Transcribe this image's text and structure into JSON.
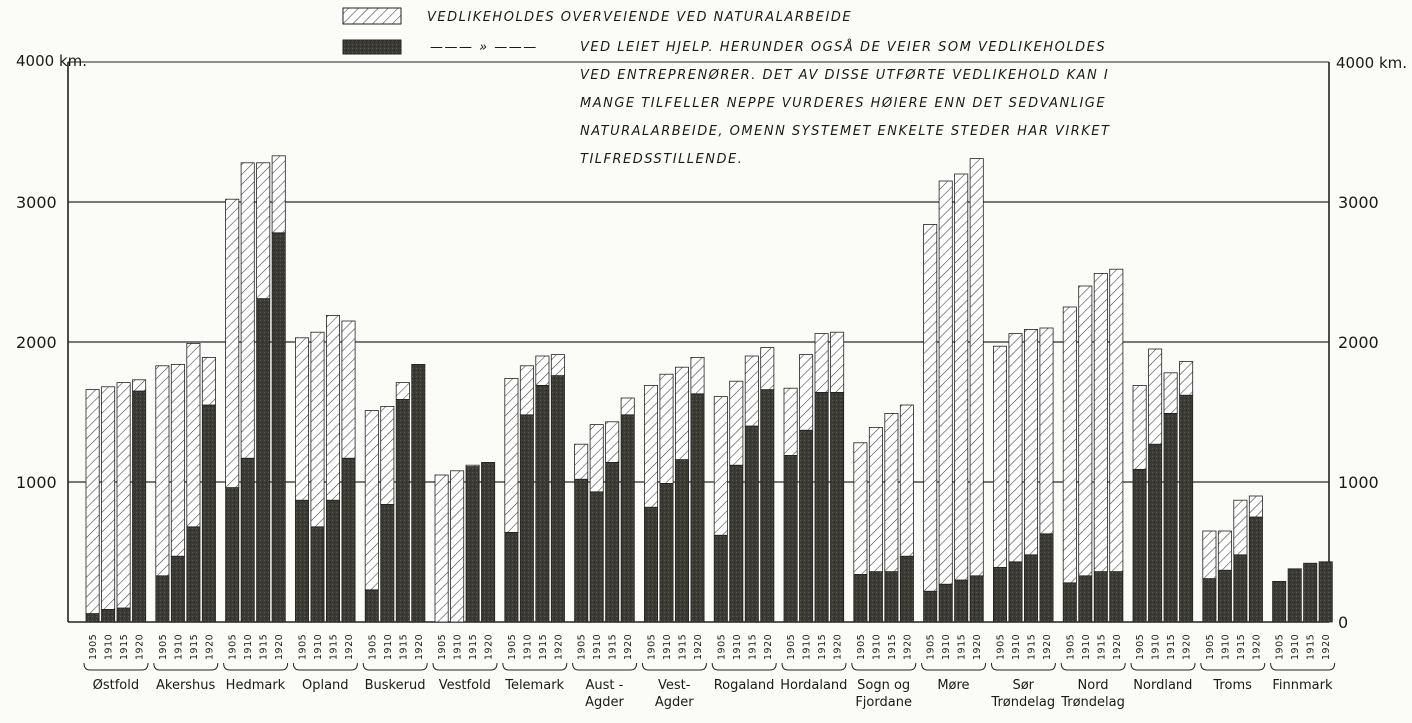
{
  "legend": {
    "natural_line1": "VEDLIKEHOLDES OVERVEIENDE VED NATURALARBEIDE",
    "hired_marker": "——— » ———",
    "hired_line1": "VED LEIET HJELP. HERUNDER OGSÅ DE VEIER SOM VEDLIKEHOLDES",
    "hired_line2": "VED ENTREPRENØRER. DET AV DISSE UTFØRTE VEDLIKEHOLD KAN I",
    "hired_line3": "MANGE TILFELLER NEPPE VURDERES HØIERE ENN DET SEDVANLIGE",
    "hired_line4": "NATURALARBEIDE, OMENN SYSTEMET ENKELTE STEDER HAR VIRKET",
    "hired_line5": "TILFREDSSTILLENDE."
  },
  "axis": {
    "left_top_label": "4000 km.",
    "right_top_label": "4000 km.",
    "left_ticks": [
      "3000",
      "2000",
      "1000"
    ],
    "right_ticks": [
      "3000",
      "2000",
      "1000",
      "0"
    ]
  },
  "colors": {
    "hatch_light": "#ffffff",
    "hatch_line": "#3a3a3a",
    "dark_fill": "#3d3b36",
    "grid": "#2a2a2a"
  },
  "chart_data": {
    "type": "bar",
    "stacked": true,
    "unit": "km",
    "ylim": [
      0,
      4000
    ],
    "grid": true,
    "legend_position": "top",
    "years": [
      "1905",
      "1910",
      "1915",
      "1920"
    ],
    "categories": [
      [
        "Østfold"
      ],
      [
        "Akershus"
      ],
      [
        "Hedmark"
      ],
      [
        "Opland"
      ],
      [
        "Buskerud"
      ],
      [
        "Vestfold"
      ],
      [
        "Telemark"
      ],
      [
        "Aust -",
        "Agder"
      ],
      [
        "Vest-",
        "Agder"
      ],
      [
        "Rogaland"
      ],
      [
        "Hordaland"
      ],
      [
        "Sogn og",
        "Fjordane"
      ],
      [
        "Møre"
      ],
      [
        "Sør",
        "Trøndelag"
      ],
      [
        "Nord",
        "Trøndelag"
      ],
      [
        "Nordland"
      ],
      [
        "Troms"
      ],
      [
        "Finnmark"
      ]
    ],
    "series": [
      {
        "name": "VEDLIKEHOLDES OVERVEIENDE VED NATURALARBEIDE",
        "values": [
          [
            1600,
            1590,
            1610,
            80
          ],
          [
            1500,
            1370,
            1310,
            340
          ],
          [
            2060,
            2110,
            970,
            550
          ],
          [
            1160,
            1390,
            1320,
            980
          ],
          [
            1280,
            700,
            120,
            0
          ],
          [
            1050,
            1080,
            10,
            0
          ],
          [
            1100,
            350,
            210,
            150
          ],
          [
            250,
            480,
            290,
            120
          ],
          [
            870,
            780,
            660,
            260
          ],
          [
            990,
            600,
            500,
            300
          ],
          [
            480,
            540,
            420,
            430
          ],
          [
            940,
            1030,
            1130,
            1080
          ],
          [
            2620,
            2880,
            2900,
            2980
          ],
          [
            1580,
            1630,
            1610,
            1470
          ],
          [
            1970,
            2070,
            2130,
            2160
          ],
          [
            600,
            680,
            290,
            240
          ],
          [
            340,
            280,
            390,
            150
          ],
          [
            0,
            0,
            0,
            0
          ]
        ]
      },
      {
        "name": "——— » ——— VED LEIET HJELP",
        "values": [
          [
            60,
            90,
            100,
            1650
          ],
          [
            330,
            470,
            680,
            1550
          ],
          [
            960,
            1170,
            2310,
            2780
          ],
          [
            870,
            680,
            870,
            1170
          ],
          [
            230,
            840,
            1590,
            1840
          ],
          [
            0,
            0,
            1110,
            1140
          ],
          [
            640,
            1480,
            1690,
            1760
          ],
          [
            1020,
            930,
            1140,
            1480
          ],
          [
            820,
            990,
            1160,
            1630
          ],
          [
            620,
            1120,
            1400,
            1660
          ],
          [
            1190,
            1370,
            1640,
            1640
          ],
          [
            340,
            360,
            360,
            470
          ],
          [
            220,
            270,
            300,
            330
          ],
          [
            390,
            430,
            480,
            630
          ],
          [
            280,
            330,
            360,
            360
          ],
          [
            1090,
            1270,
            1490,
            1620
          ],
          [
            310,
            370,
            480,
            750
          ],
          [
            290,
            380,
            420,
            430
          ]
        ]
      }
    ]
  }
}
